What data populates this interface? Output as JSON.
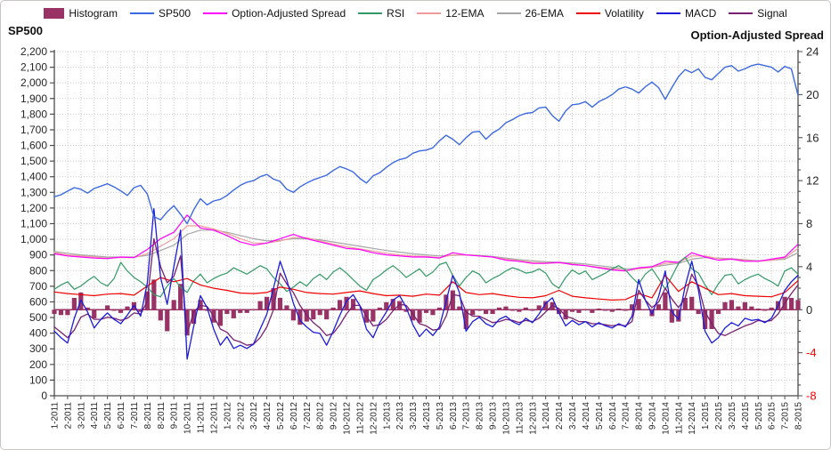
{
  "legend": {
    "items": [
      {
        "label": "Histogram",
        "color": "#993366",
        "swatch": "bar"
      },
      {
        "label": "SP500",
        "color": "#3C69E1",
        "swatch": "line"
      },
      {
        "label": "Option-Adjusted Spread",
        "color": "#FF00FF",
        "swatch": "line"
      },
      {
        "label": "RSI",
        "color": "#339966",
        "swatch": "line"
      },
      {
        "label": "12-EMA",
        "color": "#EF9B9B",
        "swatch": "line"
      },
      {
        "label": "26-EMA",
        "color": "#A6A6A6",
        "swatch": "line"
      },
      {
        "label": "Volatility",
        "color": "#EE0000",
        "swatch": "line"
      },
      {
        "label": "MACD",
        "color": "#1C1CD8",
        "swatch": "line"
      },
      {
        "label": "Signal",
        "color": "#782170",
        "swatch": "line"
      }
    ]
  },
  "chart_data": {
    "type": "combo",
    "grid": true,
    "legend_position": "top",
    "x_labels": [
      "1-2011",
      "2-2011",
      "3-2011",
      "4-2011",
      "5-2011",
      "6-2011",
      "7-2011",
      "8-2011",
      "8-2011",
      "9-2011",
      "10-2011",
      "11-2011",
      "12-2011",
      "1-2012",
      "2-2012",
      "3-2012",
      "4-2012",
      "5-2012",
      "6-2012",
      "7-2012",
      "8-2012",
      "9-2012",
      "10-2012",
      "11-2012",
      "12-2012",
      "1-2013",
      "2-2013",
      "3-2013",
      "4-2013",
      "5-2013",
      "6-2013",
      "7-2013",
      "8-2013",
      "9-2013",
      "10-2013",
      "11-2013",
      "12-2013",
      "1-2014",
      "2-2014",
      "3-2014",
      "4-2014",
      "5-2014",
      "6-2014",
      "7-2014",
      "8-2014",
      "9-2014",
      "10-2014",
      "11-2014",
      "12-2014",
      "1-2015",
      "2-2015",
      "3-2015",
      "4-2015",
      "5-2015",
      "6-2015",
      "7-2015",
      "8-2015"
    ],
    "left_axis": {
      "title": "SP500",
      "min": 0,
      "max": 2200,
      "step": 100,
      "tick_labels": [
        "0",
        "100",
        "200",
        "300",
        "400",
        "500",
        "600",
        "700",
        "800",
        "900",
        "1,000",
        "1,100",
        "1,200",
        "1,300",
        "1,400",
        "1,500",
        "1,600",
        "1,700",
        "1,800",
        "1,900",
        "2,000",
        "2,100",
        "2,200"
      ]
    },
    "right_axis": {
      "title": "Option-Adjusted Spread",
      "min": -8,
      "max": 24,
      "step": 4,
      "minor_step": 1,
      "tick_labels": [
        "-8",
        "-4",
        "0",
        "4",
        "8",
        "12",
        "16",
        "20",
        "24"
      ],
      "negative_label_color": "#FF0000"
    },
    "series": [
      {
        "name": "Histogram",
        "type": "bar",
        "axis": "right",
        "color": "#993366",
        "values": [
          -0.4,
          -0.5,
          -0.5,
          1.1,
          1.6,
          0.2,
          -0.8,
          0.0,
          0.4,
          -0.1,
          -0.3,
          0.3,
          0.7,
          -0.2,
          1.7,
          2.8,
          -1.0,
          -2.0,
          0.9,
          2.4,
          -2.4,
          -1.3,
          0.9,
          -0.1,
          -1.2,
          -1.5,
          -0.4,
          -0.8,
          -0.3,
          -0.3,
          0.0,
          0.8,
          1.2,
          2.0,
          1.1,
          0.4,
          -1.0,
          -1.4,
          -1.1,
          -0.9,
          -0.5,
          -0.9,
          0.2,
          0.9,
          1.2,
          1.0,
          0.0,
          -1.2,
          -1.1,
          0.2,
          0.7,
          1.0,
          0.8,
          -0.2,
          -1.0,
          -1.2,
          -0.3,
          -0.5,
          0.2,
          1.4,
          1.8,
          0.3,
          -1.8,
          -0.5,
          -0.1,
          -0.4,
          -0.4,
          0.2,
          0.3,
          -0.1,
          -0.2,
          0.2,
          -0.1,
          0.4,
          0.8,
          0.7,
          -0.4,
          -0.9,
          -0.2,
          -0.3,
          0.0,
          -0.3,
          0.1,
          -0.1,
          -0.2,
          0.1,
          -0.1,
          0.5,
          1.0,
          0.0,
          -0.6,
          0.5,
          1.6,
          -1.2,
          -1.1,
          1.1,
          1.2,
          -0.4,
          -1.8,
          -1.8,
          -0.4,
          0.7,
          0.9,
          0.3,
          0.7,
          0.3,
          0.1,
          -0.1,
          0.2,
          0.8,
          1.2,
          1.1,
          0.9
        ]
      },
      {
        "name": "SP500",
        "type": "line",
        "axis": "left",
        "color": "#3C69E1",
        "values": [
          1272,
          1285,
          1308,
          1330,
          1320,
          1295,
          1325,
          1340,
          1355,
          1335,
          1310,
          1280,
          1330,
          1345,
          1290,
          1145,
          1125,
          1175,
          1215,
          1160,
          1100,
          1190,
          1260,
          1220,
          1245,
          1255,
          1280,
          1315,
          1345,
          1365,
          1375,
          1400,
          1415,
          1385,
          1370,
          1320,
          1300,
          1335,
          1360,
          1380,
          1395,
          1410,
          1440,
          1465,
          1450,
          1430,
          1390,
          1360,
          1405,
          1425,
          1460,
          1490,
          1510,
          1520,
          1550,
          1565,
          1570,
          1585,
          1630,
          1665,
          1640,
          1605,
          1650,
          1685,
          1690,
          1640,
          1680,
          1705,
          1745,
          1765,
          1790,
          1805,
          1810,
          1840,
          1845,
          1790,
          1755,
          1820,
          1860,
          1865,
          1880,
          1845,
          1880,
          1900,
          1925,
          1960,
          1975,
          1960,
          1935,
          1975,
          2005,
          1970,
          1895,
          1970,
          2040,
          2085,
          2065,
          2090,
          2035,
          2020,
          2060,
          2100,
          2110,
          2075,
          2090,
          2110,
          2120,
          2110,
          2100,
          2070,
          2105,
          2090,
          1920
        ]
      },
      {
        "name": "Option-Adjusted Spread",
        "type": "line",
        "axis": "right",
        "color": "#FF00FF",
        "values": [
          5.2,
          5.0,
          4.9,
          4.8,
          4.75,
          4.9,
          4.85,
          5.6,
          6.6,
          7.2,
          8.8,
          7.6,
          7.4,
          6.9,
          6.3,
          6.0,
          6.2,
          6.6,
          7.0,
          6.6,
          6.3,
          6.0,
          5.7,
          5.6,
          5.3,
          5.1,
          5.0,
          4.9,
          4.9,
          4.8,
          5.3,
          5.1,
          5.0,
          4.9,
          4.6,
          4.5,
          4.3,
          4.3,
          4.4,
          4.2,
          4.1,
          3.9,
          3.7,
          3.6,
          3.9,
          4.0,
          4.5,
          4.4,
          5.3,
          4.9,
          4.6,
          4.7,
          4.5,
          4.5,
          4.7,
          4.9,
          6.1
        ]
      },
      {
        "name": "RSI",
        "type": "line",
        "axis": "right",
        "color": "#339966",
        "values": [
          1.9,
          2.3,
          2.6,
          1.9,
          2.2,
          2.7,
          3.1,
          2.5,
          2.2,
          2.9,
          4.4,
          3.6,
          3.0,
          2.6,
          2.1,
          1.4,
          1.2,
          2.2,
          2.9,
          2.1,
          1.6,
          2.7,
          3.3,
          2.5,
          2.9,
          3.2,
          3.4,
          3.9,
          3.6,
          3.3,
          3.7,
          4.1,
          3.8,
          3.0,
          2.4,
          1.7,
          2.1,
          2.6,
          2.2,
          2.9,
          3.3,
          2.8,
          3.5,
          3.9,
          3.4,
          2.8,
          2.2,
          1.8,
          2.8,
          3.2,
          3.7,
          4.1,
          3.6,
          3.0,
          3.4,
          3.8,
          3.1,
          3.5,
          4.2,
          4.4,
          3.2,
          2.2,
          3.0,
          3.6,
          3.3,
          2.5,
          2.9,
          3.2,
          3.6,
          3.9,
          3.7,
          3.4,
          3.5,
          3.8,
          3.4,
          2.4,
          2.0,
          3.0,
          3.7,
          3.3,
          3.6,
          2.8,
          3.1,
          3.4,
          3.8,
          4.1,
          3.7,
          3.0,
          2.4,
          3.3,
          3.8,
          2.9,
          1.9,
          3.1,
          4.3,
          4.9,
          3.8,
          3.4,
          2.3,
          1.4,
          2.4,
          3.2,
          3.3,
          2.4,
          2.8,
          3.1,
          3.3,
          2.9,
          2.6,
          2.2,
          3.6,
          3.9,
          3.3
        ]
      },
      {
        "name": "12-EMA",
        "type": "line",
        "axis": "right",
        "color": "#EF9B9B",
        "values": [
          5.3,
          5.1,
          5.0,
          4.9,
          4.8,
          4.85,
          4.85,
          5.2,
          5.9,
          6.6,
          7.8,
          7.8,
          7.5,
          7.1,
          6.6,
          6.2,
          6.2,
          6.4,
          6.7,
          6.7,
          6.4,
          6.1,
          5.85,
          5.65,
          5.45,
          5.25,
          5.1,
          5.0,
          4.95,
          4.85,
          5.1,
          5.1,
          5.0,
          4.9,
          4.7,
          4.55,
          4.4,
          4.35,
          4.35,
          4.25,
          4.1,
          3.95,
          3.8,
          3.65,
          3.8,
          3.95,
          4.3,
          4.4,
          5.0,
          5.0,
          4.75,
          4.7,
          4.6,
          4.5,
          4.6,
          4.8,
          5.7
        ]
      },
      {
        "name": "26-EMA",
        "type": "line",
        "axis": "right",
        "color": "#A6A6A6",
        "values": [
          5.4,
          5.25,
          5.1,
          5.0,
          4.9,
          4.9,
          4.9,
          5.05,
          5.5,
          6.0,
          7.0,
          7.4,
          7.4,
          7.2,
          6.9,
          6.6,
          6.4,
          6.45,
          6.6,
          6.6,
          6.5,
          6.3,
          6.1,
          5.9,
          5.7,
          5.5,
          5.35,
          5.2,
          5.1,
          5.0,
          5.05,
          5.1,
          5.05,
          4.95,
          4.8,
          4.65,
          4.55,
          4.45,
          4.4,
          4.35,
          4.25,
          4.1,
          3.95,
          3.8,
          3.85,
          3.95,
          4.15,
          4.3,
          4.7,
          4.85,
          4.8,
          4.75,
          4.65,
          4.55,
          4.6,
          4.7,
          5.3
        ]
      },
      {
        "name": "Volatility",
        "type": "line",
        "axis": "right",
        "color": "#EE0000",
        "values": [
          1.65,
          1.5,
          1.4,
          1.3,
          1.45,
          1.5,
          1.35,
          2.2,
          3.0,
          2.6,
          2.9,
          2.3,
          2.0,
          1.8,
          1.55,
          1.5,
          1.6,
          2.1,
          1.9,
          1.6,
          1.5,
          1.45,
          1.6,
          1.75,
          1.5,
          1.3,
          1.35,
          1.25,
          1.45,
          1.35,
          2.6,
          1.6,
          1.4,
          1.5,
          1.3,
          1.15,
          1.1,
          1.3,
          1.8,
          1.25,
          1.1,
          1.0,
          0.9,
          0.95,
          1.5,
          1.1,
          3.2,
          1.7,
          2.6,
          2.0,
          1.4,
          1.5,
          1.3,
          1.25,
          1.2,
          1.6,
          2.7
        ]
      },
      {
        "name": "MACD",
        "type": "line",
        "axis": "right",
        "color": "#1C1CD8",
        "values": [
          -2.0,
          -2.6,
          -3.1,
          -0.8,
          0.9,
          -0.2,
          -1.7,
          -0.9,
          -0.3,
          -0.9,
          -1.3,
          -0.5,
          0.4,
          -0.6,
          2.5,
          9.4,
          3.0,
          0.5,
          4.0,
          7.4,
          -4.6,
          -1.5,
          1.3,
          0.2,
          -1.8,
          -3.3,
          -2.5,
          -3.6,
          -3.3,
          -3.6,
          -3.2,
          -1.8,
          -0.4,
          2.0,
          4.5,
          2.8,
          0.6,
          -1.0,
          -1.6,
          -2.1,
          -2.2,
          -3.3,
          -2.0,
          -0.5,
          0.8,
          1.4,
          0.4,
          -1.8,
          -2.6,
          -1.2,
          -0.2,
          0.9,
          1.3,
          0.2,
          -1.4,
          -2.5,
          -1.8,
          -2.4,
          -1.6,
          0.8,
          3.2,
          1.6,
          -2.0,
          -1.1,
          -0.7,
          -1.3,
          -1.6,
          -0.9,
          -0.6,
          -1.1,
          -1.4,
          -0.8,
          -1.2,
          -0.4,
          0.6,
          1.1,
          -0.3,
          -1.5,
          -1.0,
          -1.4,
          -1.1,
          -1.6,
          -1.2,
          -1.5,
          -1.7,
          -1.3,
          -1.6,
          -0.6,
          2.8,
          0.9,
          -0.4,
          1.2,
          3.6,
          -0.2,
          -0.9,
          2.2,
          4.5,
          1.8,
          -2.0,
          -3.1,
          -2.6,
          -1.7,
          -1.2,
          -1.5,
          -0.8,
          -1.0,
          -0.9,
          -1.2,
          -0.8,
          0.4,
          1.8,
          2.6,
          3.2
        ]
      },
      {
        "name": "Signal",
        "type": "line",
        "axis": "right",
        "color": "#782170",
        "values": [
          -1.6,
          -2.1,
          -2.6,
          -1.9,
          -0.7,
          -0.4,
          -0.9,
          -0.9,
          -0.7,
          -0.8,
          -1.0,
          -0.8,
          -0.3,
          -0.4,
          0.8,
          6.6,
          4.0,
          2.5,
          3.1,
          5.0,
          -2.2,
          -0.2,
          0.4,
          0.3,
          -0.6,
          -1.8,
          -2.1,
          -2.8,
          -3.0,
          -3.3,
          -3.2,
          -2.6,
          -1.6,
          0.0,
          3.4,
          2.4,
          1.6,
          0.4,
          -0.5,
          -1.2,
          -1.7,
          -2.4,
          -2.2,
          -1.4,
          -0.4,
          0.4,
          0.4,
          -0.6,
          -1.5,
          -1.4,
          -0.9,
          -0.1,
          0.5,
          0.4,
          -0.4,
          -1.3,
          -1.5,
          -1.9,
          -1.8,
          -0.6,
          1.4,
          1.3,
          -0.2,
          -0.6,
          -0.6,
          -0.9,
          -1.2,
          -1.1,
          -0.9,
          -1.0,
          -1.2,
          -1.0,
          -1.1,
          -0.8,
          -0.2,
          0.4,
          0.1,
          -0.6,
          -0.8,
          -1.1,
          -1.1,
          -1.3,
          -1.3,
          -1.4,
          -1.5,
          -1.4,
          -1.5,
          -1.1,
          1.8,
          0.9,
          0.2,
          0.7,
          2.0,
          1.0,
          0.2,
          1.1,
          3.3,
          2.2,
          -0.2,
          -1.3,
          -2.2,
          -2.4,
          -2.1,
          -1.8,
          -1.5,
          -1.3,
          -1.0,
          -1.1,
          -1.0,
          -0.4,
          0.6,
          1.5,
          2.3
        ]
      }
    ],
    "draw_order": [
      "Histogram",
      "26-EMA",
      "12-EMA",
      "Option-Adjusted Spread",
      "RSI",
      "Volatility",
      "Signal",
      "MACD",
      "SP500"
    ]
  }
}
